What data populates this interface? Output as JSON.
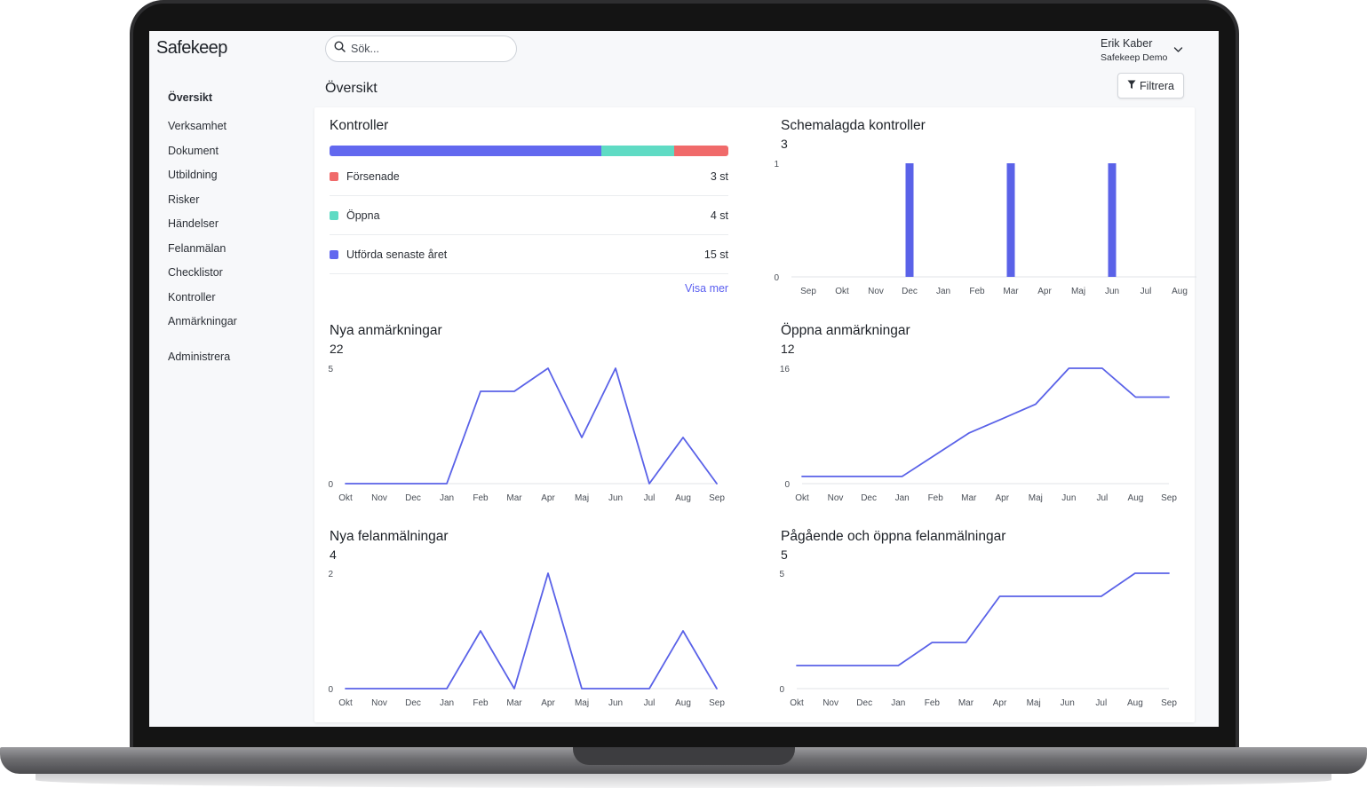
{
  "app": {
    "logo": "Safekeep",
    "search_placeholder": "Sök...",
    "page_title": "Översikt",
    "filter_label": "Filtrera",
    "user": {
      "name": "Erik Kaber",
      "organization": "Safekeep Demo"
    }
  },
  "sidebar": {
    "items": [
      {
        "label": "Översikt",
        "active": true
      },
      {
        "label": "Verksamhet"
      },
      {
        "label": "Dokument"
      },
      {
        "label": "Utbildning"
      },
      {
        "label": "Risker"
      },
      {
        "label": "Händelser"
      },
      {
        "label": "Felanmälan"
      },
      {
        "label": "Checklistor"
      },
      {
        "label": "Kontroller"
      },
      {
        "label": "Anmärkningar"
      },
      {
        "label": "Administrera"
      }
    ]
  },
  "kontroller": {
    "title": "Kontroller",
    "rows": [
      {
        "label": "Försenade",
        "count": "3 st",
        "value": 3,
        "color": "#f06a6a"
      },
      {
        "label": "Öppna",
        "count": "4 st",
        "value": 4,
        "color": "#5fdbc4"
      },
      {
        "label": "Utförda senaste året",
        "count": "15 st",
        "value": 15,
        "color": "#6268ef"
      }
    ],
    "more_link": "Visa mer"
  },
  "colors": {
    "series": "#5a62e8",
    "axis": "#e1e3e7",
    "text": "#4a4f57",
    "link": "#5b5ff0"
  },
  "chart_data": [
    {
      "type": "bar",
      "title": "Schemalagda kontroller",
      "total": "3",
      "categories": [
        "Sep",
        "Okt",
        "Nov",
        "Dec",
        "Jan",
        "Feb",
        "Mar",
        "Apr",
        "Maj",
        "Jun",
        "Jul",
        "Aug"
      ],
      "values": [
        0,
        0,
        0,
        1,
        0,
        0,
        1,
        0,
        0,
        1,
        0,
        0
      ],
      "ylim": [
        0,
        1
      ],
      "yticks": [
        "1",
        "0"
      ]
    },
    {
      "type": "line",
      "title": "Nya anmärkningar",
      "total": "22",
      "categories": [
        "Okt",
        "Nov",
        "Dec",
        "Jan",
        "Feb",
        "Mar",
        "Apr",
        "Maj",
        "Jun",
        "Jul",
        "Aug",
        "Sep"
      ],
      "values": [
        0,
        0,
        0,
        0,
        4,
        4,
        5,
        2,
        5,
        0,
        2,
        0
      ],
      "ylim": [
        0,
        5
      ],
      "yticks": [
        "5",
        "0"
      ]
    },
    {
      "type": "line",
      "title": "Öppna anmärkningar",
      "total": "12",
      "categories": [
        "Okt",
        "Nov",
        "Dec",
        "Jan",
        "Feb",
        "Mar",
        "Apr",
        "Maj",
        "Jun",
        "Jul",
        "Aug",
        "Sep"
      ],
      "values": [
        1,
        1,
        1,
        1,
        4,
        7,
        9,
        11,
        16,
        16,
        12,
        12
      ],
      "ylim": [
        0,
        16
      ],
      "yticks": [
        "16",
        "0"
      ]
    },
    {
      "type": "line",
      "title": "Nya felanmälningar",
      "total": "4",
      "categories": [
        "Okt",
        "Nov",
        "Dec",
        "Jan",
        "Feb",
        "Mar",
        "Apr",
        "Maj",
        "Jun",
        "Jul",
        "Aug",
        "Sep"
      ],
      "values": [
        0,
        0,
        0,
        0,
        1,
        0,
        2,
        0,
        0,
        0,
        1,
        0
      ],
      "ylim": [
        0,
        2
      ],
      "yticks": [
        "2",
        "0"
      ]
    },
    {
      "type": "line",
      "title": "Pågående och öppna felanmälningar",
      "total": "5",
      "categories": [
        "Okt",
        "Nov",
        "Dec",
        "Jan",
        "Feb",
        "Mar",
        "Apr",
        "Maj",
        "Jun",
        "Jul",
        "Aug",
        "Sep"
      ],
      "values": [
        1,
        1,
        1,
        1,
        2,
        2,
        4,
        4,
        4,
        4,
        5,
        5
      ],
      "ylim": [
        0,
        5
      ],
      "yticks": [
        "5",
        "0"
      ]
    }
  ]
}
